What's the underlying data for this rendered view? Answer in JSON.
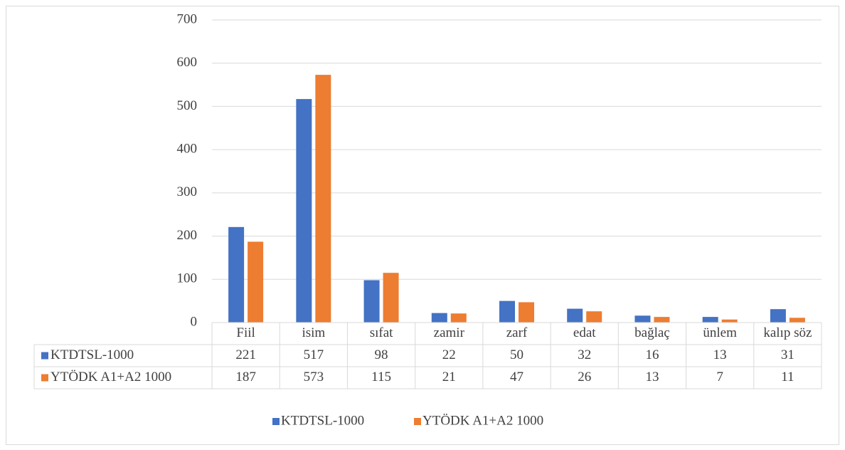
{
  "chart_data": {
    "type": "bar",
    "categories": [
      "Fiil",
      "isim",
      "sıfat",
      "zamir",
      "zarf",
      "edat",
      "bağlaç",
      "ünlem",
      "kalıp söz"
    ],
    "series": [
      {
        "name": "KTDTSL-1000",
        "color": "#4472c4",
        "values": [
          221,
          517,
          98,
          22,
          50,
          32,
          16,
          13,
          31
        ]
      },
      {
        "name": "YTÖDK A1+A2 1000",
        "color": "#ed7d31",
        "values": [
          187,
          573,
          115,
          21,
          47,
          26,
          13,
          7,
          11
        ]
      }
    ],
    "ylim": [
      0,
      700
    ],
    "yticks": [
      0,
      100,
      200,
      300,
      400,
      500,
      600,
      700
    ],
    "grid": true,
    "legend": "bottom"
  }
}
